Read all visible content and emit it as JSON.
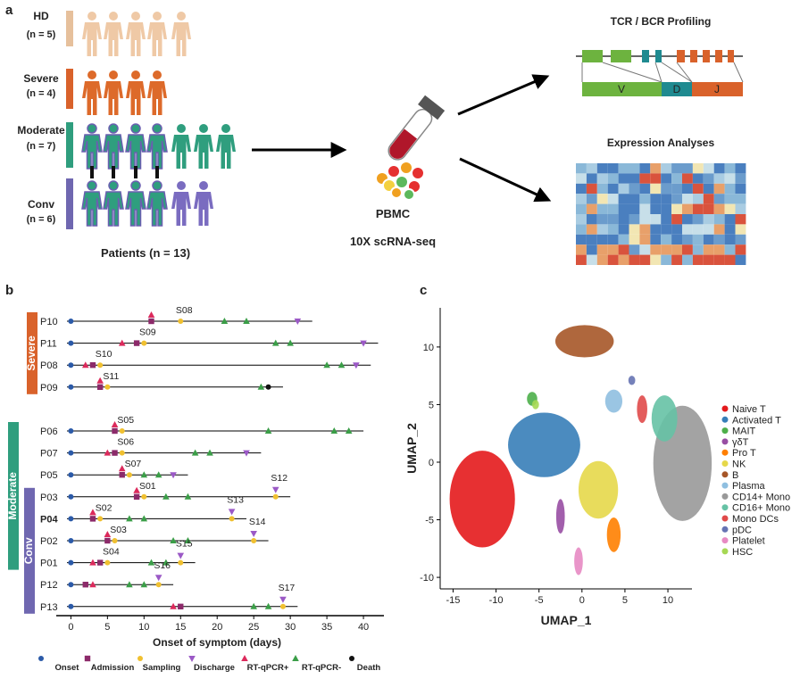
{
  "panel_labels": [
    "a",
    "b",
    "c"
  ],
  "overview": {
    "groups": [
      {
        "name": "HD",
        "n": "(n = 5)"
      },
      {
        "name": "Severe",
        "n": "(n = 4)"
      },
      {
        "name": "Moderate",
        "n": "(n = 7)"
      },
      {
        "name": "Conv",
        "n": "(n = 6)"
      }
    ],
    "patients_label": "Patients (n = 13)",
    "sample_label": "PBMC",
    "method": "10X scRNA-seq",
    "tcr_title": "TCR / BCR  Profiling",
    "segments": [
      "V",
      "D",
      "J"
    ],
    "expression_title": "Expression Analyses"
  },
  "chart_data": [
    {
      "type": "timeline",
      "xlabel": "Onset of  symptom (days)",
      "xlim": [
        -2,
        42.8
      ],
      "xticks": [
        0,
        5,
        10,
        15,
        20,
        25,
        30,
        35,
        40
      ],
      "event_types": [
        {
          "name": "Onset",
          "color": "#2b5aa8",
          "shape": "circle"
        },
        {
          "name": "Admission",
          "color": "#8c2a6a",
          "shape": "square"
        },
        {
          "name": "Sampling",
          "color": "#f0c030",
          "shape": "circle"
        },
        {
          "name": "Discharge",
          "color": "#9b59c6",
          "shape": "triangle-down"
        },
        {
          "name": "RT-qPCR+",
          "color": "#dc2a5c",
          "shape": "triangle-up"
        },
        {
          "name": "RT-qPCR-",
          "color": "#3b9e48",
          "shape": "triangle-up"
        },
        {
          "name": "Death",
          "color": "#111111",
          "shape": "circle"
        }
      ],
      "groups": [
        {
          "name": "Severe",
          "color": "#d9622b",
          "patients": [
            "P10",
            "P09"
          ]
        },
        {
          "name": "Moderate",
          "color": "#2f9e7e",
          "patients": [
            "P06",
            "P01"
          ]
        },
        {
          "name": "Conv",
          "color": "#6f67b0",
          "patients": [
            "P03",
            "P13"
          ]
        }
      ],
      "patients": [
        {
          "id": "P10",
          "end": 33,
          "events": [
            {
              "type": "Onset",
              "day": 0
            },
            {
              "type": "Admission",
              "day": 11
            },
            {
              "type": "RT-qPCR+",
              "day": 11
            },
            {
              "type": "Sampling",
              "day": 15,
              "label": "S08"
            },
            {
              "type": "RT-qPCR-",
              "day": 21
            },
            {
              "type": "RT-qPCR-",
              "day": 24
            },
            {
              "type": "Discharge",
              "day": 31
            }
          ]
        },
        {
          "id": "P11",
          "end": 42,
          "events": [
            {
              "type": "Onset",
              "day": 0
            },
            {
              "type": "RT-qPCR+",
              "day": 7
            },
            {
              "type": "Admission",
              "day": 9
            },
            {
              "type": "Sampling",
              "day": 10,
              "label": "S09"
            },
            {
              "type": "RT-qPCR-",
              "day": 28
            },
            {
              "type": "RT-qPCR-",
              "day": 30
            },
            {
              "type": "Discharge",
              "day": 40
            }
          ]
        },
        {
          "id": "P08",
          "end": 41,
          "events": [
            {
              "type": "Onset",
              "day": 0
            },
            {
              "type": "RT-qPCR+",
              "day": 2
            },
            {
              "type": "Admission",
              "day": 3
            },
            {
              "type": "Sampling",
              "day": 4,
              "label": "S10"
            },
            {
              "type": "RT-qPCR-",
              "day": 35
            },
            {
              "type": "RT-qPCR-",
              "day": 37
            },
            {
              "type": "Discharge",
              "day": 39
            }
          ]
        },
        {
          "id": "P09",
          "end": 29,
          "events": [
            {
              "type": "Onset",
              "day": 0
            },
            {
              "type": "Admission",
              "day": 4
            },
            {
              "type": "RT-qPCR+",
              "day": 4
            },
            {
              "type": "Sampling",
              "day": 5,
              "label": "S11"
            },
            {
              "type": "RT-qPCR-",
              "day": 26
            },
            {
              "type": "Death",
              "day": 27
            }
          ]
        },
        {
          "id": "P06",
          "end": 40,
          "events": [
            {
              "type": "Onset",
              "day": 0
            },
            {
              "type": "Admission",
              "day": 6
            },
            {
              "type": "RT-qPCR+",
              "day": 6
            },
            {
              "type": "Sampling",
              "day": 7,
              "label": "S05"
            },
            {
              "type": "RT-qPCR-",
              "day": 27
            },
            {
              "type": "RT-qPCR-",
              "day": 36
            },
            {
              "type": "RT-qPCR-",
              "day": 38
            }
          ]
        },
        {
          "id": "P07",
          "end": 26,
          "events": [
            {
              "type": "Onset",
              "day": 0
            },
            {
              "type": "RT-qPCR+",
              "day": 5
            },
            {
              "type": "Admission",
              "day": 6
            },
            {
              "type": "Sampling",
              "day": 7,
              "label": "S06"
            },
            {
              "type": "RT-qPCR-",
              "day": 17
            },
            {
              "type": "RT-qPCR-",
              "day": 19
            },
            {
              "type": "Discharge",
              "day": 24
            }
          ]
        },
        {
          "id": "P05",
          "end": 16,
          "events": [
            {
              "type": "Onset",
              "day": 0
            },
            {
              "type": "Admission",
              "day": 7
            },
            {
              "type": "RT-qPCR+",
              "day": 7
            },
            {
              "type": "Sampling",
              "day": 8,
              "label": "S07"
            },
            {
              "type": "RT-qPCR-",
              "day": 10
            },
            {
              "type": "RT-qPCR-",
              "day": 12
            },
            {
              "type": "Discharge",
              "day": 14
            }
          ]
        },
        {
          "id": "P03",
          "end": 30,
          "events": [
            {
              "type": "Onset",
              "day": 0
            },
            {
              "type": "Admission",
              "day": 9
            },
            {
              "type": "RT-qPCR+",
              "day": 9
            },
            {
              "type": "Sampling",
              "day": 10,
              "label": "S01"
            },
            {
              "type": "RT-qPCR-",
              "day": 13
            },
            {
              "type": "RT-qPCR-",
              "day": 16
            },
            {
              "type": "Discharge",
              "day": 28
            },
            {
              "type": "Sampling",
              "day": 28,
              "label": "S12"
            }
          ]
        },
        {
          "id": "P04",
          "end": 24,
          "bold": true,
          "events": [
            {
              "type": "Onset",
              "day": 0
            },
            {
              "type": "Admission",
              "day": 3
            },
            {
              "type": "RT-qPCR+",
              "day": 3
            },
            {
              "type": "Sampling",
              "day": 4,
              "label": "S02"
            },
            {
              "type": "RT-qPCR-",
              "day": 8
            },
            {
              "type": "RT-qPCR-",
              "day": 10
            },
            {
              "type": "Discharge",
              "day": 22
            },
            {
              "type": "Sampling",
              "day": 22,
              "label": "S13"
            }
          ]
        },
        {
          "id": "P02",
          "end": 27,
          "events": [
            {
              "type": "Onset",
              "day": 0
            },
            {
              "type": "Admission",
              "day": 5
            },
            {
              "type": "RT-qPCR+",
              "day": 5
            },
            {
              "type": "Sampling",
              "day": 6,
              "label": "S03"
            },
            {
              "type": "RT-qPCR-",
              "day": 14
            },
            {
              "type": "RT-qPCR-",
              "day": 16
            },
            {
              "type": "Discharge",
              "day": 25
            },
            {
              "type": "Sampling",
              "day": 25,
              "label": "S14"
            }
          ]
        },
        {
          "id": "P01",
          "end": 17,
          "events": [
            {
              "type": "Onset",
              "day": 0
            },
            {
              "type": "RT-qPCR+",
              "day": 3
            },
            {
              "type": "Admission",
              "day": 4
            },
            {
              "type": "Sampling",
              "day": 5,
              "label": "S04"
            },
            {
              "type": "RT-qPCR-",
              "day": 11
            },
            {
              "type": "RT-qPCR-",
              "day": 13
            },
            {
              "type": "Discharge",
              "day": 15
            },
            {
              "type": "Sampling",
              "day": 15,
              "label": "S15"
            }
          ]
        },
        {
          "id": "P12",
          "end": 14,
          "events": [
            {
              "type": "Onset",
              "day": 0
            },
            {
              "type": "Admission",
              "day": 2
            },
            {
              "type": "RT-qPCR+",
              "day": 3
            },
            {
              "type": "RT-qPCR-",
              "day": 8
            },
            {
              "type": "RT-qPCR-",
              "day": 10
            },
            {
              "type": "Discharge",
              "day": 12
            },
            {
              "type": "Sampling",
              "day": 12,
              "label": "S16"
            }
          ]
        },
        {
          "id": "P13",
          "end": 31,
          "events": [
            {
              "type": "Onset",
              "day": 0
            },
            {
              "type": "RT-qPCR+",
              "day": 14
            },
            {
              "type": "Admission",
              "day": 15
            },
            {
              "type": "RT-qPCR-",
              "day": 25
            },
            {
              "type": "RT-qPCR-",
              "day": 27
            },
            {
              "type": "Discharge",
              "day": 29
            },
            {
              "type": "Sampling",
              "day": 29,
              "label": "S17"
            }
          ]
        }
      ]
    },
    {
      "type": "scatter",
      "xlabel": "UMAP_1",
      "ylabel": "UMAP_2",
      "xlim": [
        -16.5,
        12.8
      ],
      "ylim": [
        -11,
        13.4
      ],
      "xticks": [
        -15,
        -10,
        -5,
        0,
        5,
        10
      ],
      "yticks": [
        -10,
        -5,
        0,
        5,
        10
      ],
      "series": [
        {
          "name": "Naive T",
          "color": "#e41a1c",
          "x": -11.6,
          "y": -3.2,
          "rx": 3.8,
          "ry": 4.2
        },
        {
          "name": "Activated T",
          "color": "#377eb8",
          "x": -4.4,
          "y": 1.5,
          "rx": 4.2,
          "ry": 2.8
        },
        {
          "name": "MAIT",
          "color": "#4daf4a",
          "x": -5.8,
          "y": 5.5,
          "rx": 0.6,
          "ry": 0.6
        },
        {
          "name": "γδT",
          "color": "#984ea3",
          "x": -2.5,
          "y": -4.7,
          "rx": 0.5,
          "ry": 1.5
        },
        {
          "name": "Pro T",
          "color": "#ff7f00",
          "x": 3.7,
          "y": -6.3,
          "rx": 0.8,
          "ry": 1.5
        },
        {
          "name": "NK",
          "color": "#e6d84a",
          "x": 1.9,
          "y": -2.4,
          "rx": 2.3,
          "ry": 2.5
        },
        {
          "name": "B",
          "color": "#a65628",
          "x": 0.3,
          "y": 10.5,
          "rx": 3.4,
          "ry": 1.4
        },
        {
          "name": "Plasma",
          "color": "#8fbfe0",
          "x": 3.7,
          "y": 5.3,
          "rx": 1,
          "ry": 1
        },
        {
          "name": "CD14+ Mono",
          "color": "#999999",
          "x": 11.7,
          "y": -0.1,
          "rx": 3.4,
          "ry": 5
        },
        {
          "name": "CD16+ Mono",
          "color": "#66c2a5",
          "x": 9.6,
          "y": 3.8,
          "rx": 1.5,
          "ry": 2
        },
        {
          "name": "Mono DCs",
          "color": "#e04a4a",
          "x": 7,
          "y": 4.6,
          "rx": 0.6,
          "ry": 1.2
        },
        {
          "name": "pDC",
          "color": "#6673b3",
          "x": 5.8,
          "y": 7.1,
          "rx": 0.4,
          "ry": 0.4
        },
        {
          "name": "Platelet",
          "color": "#e78ac3",
          "x": -0.4,
          "y": -8.6,
          "rx": 0.5,
          "ry": 1.2
        },
        {
          "name": "HSC",
          "color": "#a6d854",
          "x": -5.4,
          "y": 5,
          "rx": 0.4,
          "ry": 0.4
        }
      ]
    }
  ]
}
